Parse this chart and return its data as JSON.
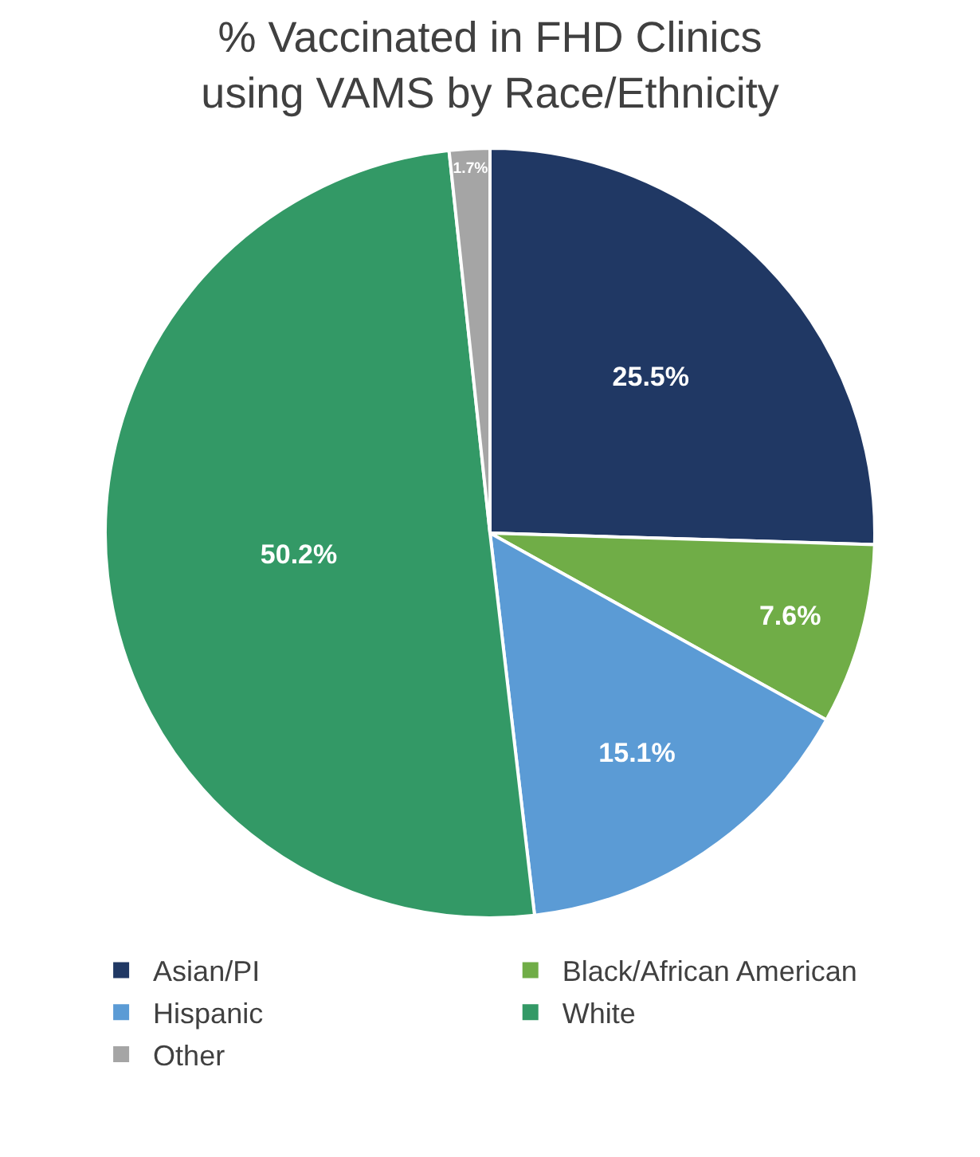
{
  "chart_data": {
    "type": "pie",
    "title": "% Vaccinated in FHD Clinics\nusing VAMS by Race/Ethnicity",
    "categories": [
      "Asian/PI",
      "Black/African American",
      "Hispanic",
      "White",
      "Other"
    ],
    "values": [
      25.5,
      7.6,
      15.1,
      50.2,
      1.7
    ],
    "value_labels": [
      "25.5%",
      "7.6%",
      "15.1%",
      "50.2%",
      "1.7%"
    ],
    "colors": [
      "#203864",
      "#70ad47",
      "#5b9bd5",
      "#339966",
      "#a5a5a5"
    ],
    "legend": "bottom"
  }
}
